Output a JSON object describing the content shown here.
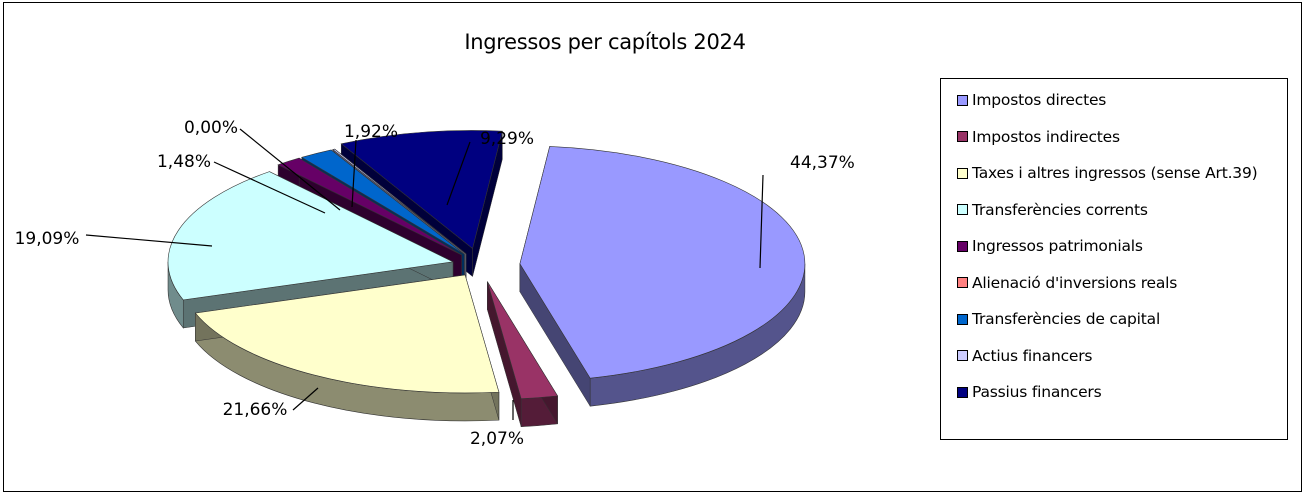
{
  "chart_data": {
    "type": "pie",
    "title": "Ingressos per capítols 2024",
    "legend_position": "right",
    "categories": [
      "Impostos directes",
      "Impostos indirectes",
      "Taxes i altres ingressos (sense Art.39)",
      "Transferències corrents",
      "Ingressos patrimonials",
      "Alienació d'inversions reals",
      "Transferències de capital",
      "Actius financers",
      "Passius financers"
    ],
    "values": [
      44.37,
      2.07,
      21.66,
      19.09,
      1.48,
      0.0,
      1.92,
      0.12,
      9.29
    ],
    "data_labels": [
      "44,37%",
      "2,07%",
      "21,66%",
      "19,09%",
      "1,48%",
      "0,00%",
      "1,92%",
      "",
      "9,29%"
    ],
    "colors": [
      "#9999FF",
      "#993366",
      "#FFFFCC",
      "#CCFFFF",
      "#660066",
      "#FF8080",
      "#0066CC",
      "#CCCCFF",
      "#000080"
    ],
    "style": "3d-exploded"
  }
}
